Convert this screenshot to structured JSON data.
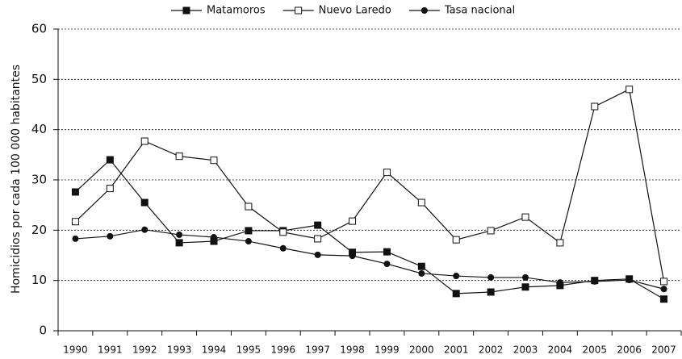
{
  "chart_data": {
    "type": "line",
    "y_label": "Homicidios por cada 100 000 habitantes",
    "categories": [
      "1990",
      "1991",
      "1992",
      "1993",
      "1994",
      "1995",
      "1996",
      "1997",
      "1998",
      "1999",
      "2000",
      "2001",
      "2002",
      "2003",
      "2004",
      "2005",
      "2006",
      "2007"
    ],
    "series": [
      {
        "name": "Matamoros",
        "color": "#111111",
        "marker": "square-filled",
        "values": [
          27.6,
          34.0,
          25.5,
          17.5,
          17.8,
          19.9,
          19.9,
          21.0,
          15.6,
          15.7,
          12.8,
          7.4,
          7.7,
          8.7,
          9.0,
          10.0,
          10.3,
          6.3
        ]
      },
      {
        "name": "Nuevo Laredo",
        "color": "#111111",
        "marker": "square-open",
        "values": [
          21.7,
          28.3,
          37.7,
          34.7,
          33.9,
          24.7,
          19.6,
          18.3,
          21.8,
          31.5,
          25.5,
          18.1,
          19.9,
          22.6,
          17.5,
          44.6,
          48.0,
          9.8
        ]
      },
      {
        "name": "Tasa nacional",
        "color": "#111111",
        "marker": "circle-filled",
        "values": [
          18.3,
          18.8,
          20.1,
          19.1,
          18.6,
          17.8,
          16.4,
          15.1,
          14.9,
          13.3,
          11.4,
          10.9,
          10.6,
          10.6,
          9.6,
          9.8,
          10.1,
          8.3
        ]
      }
    ],
    "ylim": [
      0,
      60
    ],
    "yticks": [
      0,
      10,
      20,
      30,
      40,
      50,
      60
    ],
    "grid": true,
    "legend": "top"
  }
}
